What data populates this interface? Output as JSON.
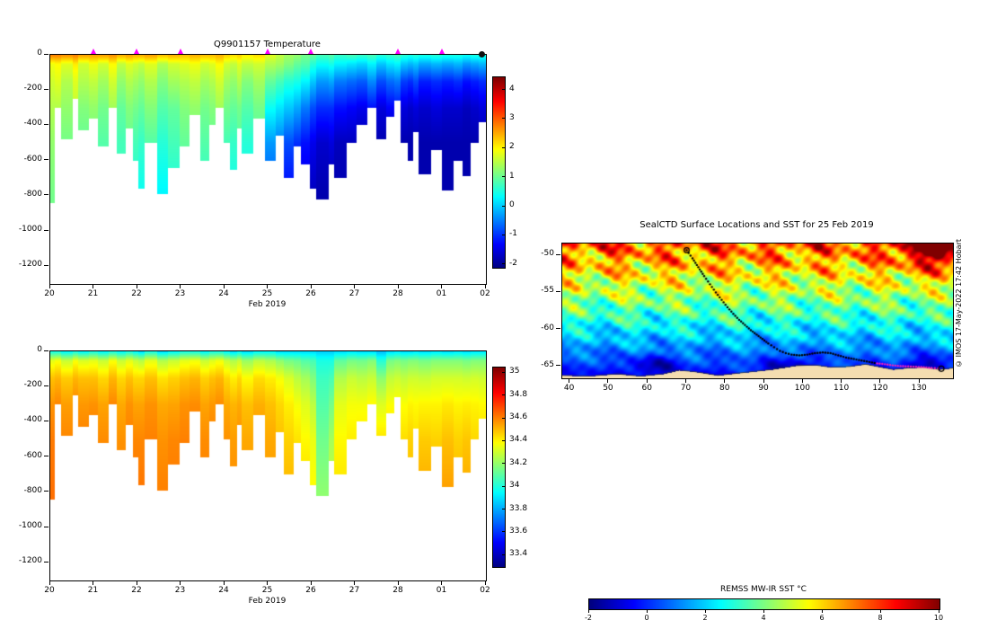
{
  "figure": {
    "background": "#ffffff"
  },
  "colors": {
    "land": "#f4ddb0",
    "track": "#000000",
    "track_recent": "#ee22bb",
    "surface_marker": "#ff00ff",
    "end_marker": "#111111",
    "axis": "#000000"
  },
  "chart_data": [
    {
      "type": "heatmap",
      "id": "temperature_section",
      "title": "Q9901157  Temperature",
      "xlabel": "Feb 2019",
      "x_ticks": [
        "20",
        "21",
        "22",
        "23",
        "24",
        "25",
        "26",
        "27",
        "28",
        "01",
        "02"
      ],
      "y_ticks": [
        0,
        -200,
        -400,
        -600,
        -800,
        -1000,
        -1200
      ],
      "ylim": [
        0,
        -1300
      ],
      "x_span_days": 10,
      "colorbar": {
        "min": -2.1,
        "max": 4.45,
        "ticks": [
          "4",
          "3",
          "2",
          "1",
          "0",
          "-1",
          "-2"
        ],
        "colormap": "jet"
      },
      "surface_marker_days": [
        1,
        2,
        3,
        5,
        6,
        8,
        9
      ],
      "end_marker_day": 9.93,
      "control_depths": [
        0,
        50,
        150,
        300,
        500,
        800
      ],
      "dive_max_depths": [
        840,
        300,
        480,
        250,
        430,
        360,
        520,
        300,
        560,
        420,
        600,
        760,
        500,
        790,
        640,
        520,
        340,
        600,
        400,
        300,
        500,
        650,
        420,
        560,
        360,
        600,
        460,
        700,
        520,
        620,
        760,
        820,
        620,
        700,
        500,
        400,
        300,
        480,
        350,
        260,
        500,
        600,
        440,
        680,
        540,
        770,
        600,
        690,
        500,
        380
      ],
      "profiles": [
        [
          2.8,
          1.9,
          1.7,
          1.5,
          1.3,
          1.1
        ],
        [
          2.8,
          2.0,
          1.8,
          1.5,
          1.4,
          1.2
        ],
        [
          2.7,
          1.8,
          1.5,
          1.3,
          1.1,
          1.0
        ],
        [
          2.8,
          2.1,
          1.8,
          1.6,
          1.4,
          1.2
        ],
        [
          2.6,
          1.7,
          1.5,
          1.2,
          1.0,
          0.9
        ],
        [
          2.6,
          1.9,
          1.6,
          1.3,
          1.1,
          1.0
        ],
        [
          2.6,
          1.7,
          1.4,
          1.1,
          0.9,
          0.8
        ],
        [
          2.7,
          2.0,
          1.7,
          1.4,
          1.2,
          1.0
        ],
        [
          2.5,
          1.6,
          1.3,
          1.0,
          0.8,
          0.7
        ],
        [
          2.6,
          1.8,
          1.5,
          1.2,
          1.0,
          0.9
        ],
        [
          2.5,
          1.7,
          1.4,
          1.1,
          0.8,
          0.5
        ],
        [
          2.5,
          1.6,
          1.3,
          1.0,
          0.7,
          0.4
        ],
        [
          2.6,
          1.8,
          1.5,
          1.2,
          0.9,
          0.7
        ],
        [
          2.4,
          1.5,
          1.2,
          0.9,
          0.6,
          0.3
        ],
        [
          2.5,
          1.7,
          1.4,
          1.0,
          0.8,
          0.5
        ],
        [
          2.4,
          1.8,
          1.5,
          1.2,
          1.0,
          0.8
        ],
        [
          2.5,
          1.9,
          1.6,
          1.3,
          1.1,
          0.9
        ],
        [
          2.4,
          1.7,
          1.4,
          1.1,
          0.9,
          0.6
        ],
        [
          2.4,
          1.8,
          1.5,
          1.2,
          1.0,
          0.8
        ],
        [
          2.5,
          2.0,
          1.7,
          1.4,
          1.2,
          1.0
        ],
        [
          2.3,
          1.7,
          1.4,
          1.1,
          0.8,
          0.6
        ],
        [
          2.2,
          1.6,
          1.3,
          1.0,
          0.7,
          0.4
        ],
        [
          2.3,
          1.8,
          1.5,
          1.1,
          0.9,
          0.7
        ],
        [
          2.1,
          1.6,
          1.2,
          0.9,
          0.6,
          0.4
        ],
        [
          2.2,
          1.7,
          1.4,
          1.1,
          0.9,
          0.7
        ],
        [
          1.8,
          1.5,
          1.0,
          0.4,
          -0.3,
          -0.8
        ],
        [
          1.6,
          1.4,
          0.8,
          0.2,
          -0.5,
          -1.0
        ],
        [
          1.4,
          1.2,
          0.6,
          0.0,
          -0.8,
          -1.3
        ],
        [
          1.3,
          1.0,
          0.5,
          -0.2,
          -1.0,
          -1.4
        ],
        [
          1.1,
          0.9,
          0.3,
          -0.5,
          -1.2,
          -1.5
        ],
        [
          1.0,
          0.6,
          0.0,
          -0.8,
          -1.4,
          -1.7
        ],
        [
          0.8,
          0.4,
          -0.3,
          -1.0,
          -1.6,
          -1.8
        ],
        [
          0.9,
          0.5,
          -0.2,
          -1.0,
          -1.5,
          -1.8
        ],
        [
          0.7,
          0.3,
          -0.5,
          -1.2,
          -1.7,
          -1.8
        ],
        [
          0.8,
          0.2,
          -0.6,
          -1.3,
          -1.7,
          -1.8
        ],
        [
          0.7,
          0.1,
          -0.7,
          -1.4,
          -1.8,
          -1.8
        ],
        [
          0.8,
          0.3,
          -0.4,
          -1.2,
          -1.7,
          -1.8
        ],
        [
          0.6,
          0.0,
          -0.8,
          -1.5,
          -1.8,
          -1.8
        ],
        [
          0.7,
          0.2,
          -0.6,
          -1.3,
          -1.8,
          -1.8
        ],
        [
          0.8,
          0.3,
          -0.5,
          -1.2,
          -1.7,
          -1.8
        ],
        [
          0.6,
          0.0,
          -0.9,
          -1.5,
          -1.8,
          -1.8
        ],
        [
          0.5,
          -0.1,
          -1.0,
          -1.6,
          -1.8,
          -1.8
        ],
        [
          0.6,
          0.0,
          -0.8,
          -1.5,
          -1.8,
          -1.8
        ],
        [
          0.5,
          -0.2,
          -1.1,
          -1.6,
          -1.8,
          -1.8
        ],
        [
          0.6,
          -0.1,
          -1.0,
          -1.5,
          -1.8,
          -1.8
        ],
        [
          0.5,
          -0.2,
          -1.1,
          -1.6,
          -1.8,
          -1.8
        ],
        [
          0.5,
          -0.1,
          -1.0,
          -1.6,
          -1.8,
          -1.8
        ],
        [
          0.4,
          -0.3,
          -1.2,
          -1.7,
          -1.8,
          -1.8
        ],
        [
          0.5,
          -0.2,
          -1.1,
          -1.6,
          -1.8,
          -1.8
        ],
        [
          0.5,
          -0.1,
          -1.0,
          -1.5,
          -1.8,
          -1.8
        ]
      ]
    },
    {
      "type": "heatmap",
      "id": "salinity_section",
      "title": "",
      "xlabel": "Feb 2019",
      "x_ticks": [
        "20",
        "21",
        "22",
        "23",
        "24",
        "25",
        "26",
        "27",
        "28",
        "01",
        "02"
      ],
      "y_ticks": [
        0,
        -200,
        -400,
        -600,
        -800,
        -1000,
        -1200
      ],
      "ylim": [
        0,
        -1300
      ],
      "x_span_days": 10,
      "colorbar": {
        "min": 33.3,
        "max": 35.05,
        "ticks": [
          "35",
          "34.8",
          "34.6",
          "34.4",
          "34.2",
          "34",
          "33.8",
          "33.6",
          "33.4"
        ],
        "colormap": "jet"
      },
      "shares_dive_depths_with": "temperature_section",
      "control_depths": [
        0,
        50,
        150,
        300,
        500,
        800
      ],
      "profiles": [
        [
          34.0,
          34.35,
          34.5,
          34.58,
          34.62,
          34.64
        ],
        [
          34.0,
          34.38,
          34.52,
          34.6,
          34.63,
          34.65
        ],
        [
          33.95,
          34.3,
          34.48,
          34.56,
          34.6,
          34.63
        ],
        [
          34.0,
          34.38,
          34.52,
          34.6,
          34.62,
          34.64
        ],
        [
          33.95,
          34.33,
          34.5,
          34.57,
          34.61,
          34.63
        ],
        [
          34.0,
          34.35,
          34.5,
          34.58,
          34.62,
          34.64
        ],
        [
          33.95,
          34.3,
          34.46,
          34.55,
          34.59,
          34.62
        ],
        [
          34.0,
          34.38,
          34.52,
          34.6,
          34.63,
          34.65
        ],
        [
          33.95,
          34.3,
          34.46,
          34.54,
          34.58,
          34.61
        ],
        [
          34.0,
          34.35,
          34.5,
          34.58,
          34.61,
          34.63
        ],
        [
          33.95,
          34.3,
          34.46,
          34.55,
          34.6,
          34.63
        ],
        [
          33.9,
          34.27,
          34.46,
          34.55,
          34.6,
          34.63
        ],
        [
          34.0,
          34.35,
          34.5,
          34.58,
          34.61,
          34.63
        ],
        [
          33.9,
          34.26,
          34.44,
          34.54,
          34.58,
          34.61
        ],
        [
          33.95,
          34.3,
          34.47,
          34.55,
          34.6,
          34.62
        ],
        [
          34.0,
          34.35,
          34.5,
          34.58,
          34.61,
          34.63
        ],
        [
          34.0,
          34.37,
          34.52,
          34.59,
          34.62,
          34.64
        ],
        [
          33.95,
          34.3,
          34.47,
          34.55,
          34.59,
          34.61
        ],
        [
          34.0,
          34.34,
          34.5,
          34.57,
          34.61,
          34.63
        ],
        [
          34.0,
          34.37,
          34.52,
          34.59,
          34.62,
          34.64
        ],
        [
          33.95,
          34.3,
          34.46,
          34.54,
          34.58,
          34.61
        ],
        [
          33.9,
          34.26,
          34.42,
          34.52,
          34.56,
          34.59
        ],
        [
          33.95,
          34.3,
          34.46,
          34.54,
          34.58,
          34.6
        ],
        [
          33.9,
          34.22,
          34.4,
          34.5,
          34.54,
          34.57
        ],
        [
          33.95,
          34.28,
          34.45,
          34.53,
          34.57,
          34.6
        ],
        [
          33.95,
          34.25,
          34.42,
          34.5,
          34.54,
          34.57
        ],
        [
          33.9,
          34.2,
          34.38,
          34.46,
          34.5,
          34.54
        ],
        [
          33.9,
          34.16,
          34.33,
          34.42,
          34.47,
          34.52
        ],
        [
          33.9,
          34.14,
          34.28,
          34.38,
          34.44,
          34.49
        ],
        [
          33.9,
          34.1,
          34.24,
          34.34,
          34.4,
          34.46
        ],
        [
          33.9,
          34.08,
          34.18,
          34.28,
          34.36,
          34.4
        ],
        [
          33.88,
          34.0,
          34.06,
          34.1,
          34.15,
          34.2
        ],
        [
          33.88,
          34.0,
          34.08,
          34.16,
          34.24,
          34.3
        ],
        [
          33.9,
          34.12,
          34.26,
          34.35,
          34.4,
          34.44
        ],
        [
          33.92,
          34.16,
          34.3,
          34.38,
          34.42,
          34.46
        ],
        [
          33.9,
          34.15,
          34.28,
          34.38,
          34.43,
          34.47
        ],
        [
          33.9,
          34.18,
          34.3,
          34.4,
          34.45,
          34.49
        ],
        [
          33.85,
          34.02,
          34.2,
          34.34,
          34.44,
          34.49
        ],
        [
          33.9,
          34.16,
          34.29,
          34.39,
          34.45,
          34.49
        ],
        [
          33.92,
          34.18,
          34.31,
          34.4,
          34.45,
          34.5
        ],
        [
          33.9,
          34.16,
          34.29,
          34.39,
          34.45,
          34.5
        ],
        [
          33.9,
          34.18,
          34.31,
          34.41,
          34.47,
          34.52
        ],
        [
          33.92,
          34.18,
          34.31,
          34.4,
          34.45,
          34.5
        ],
        [
          33.9,
          34.16,
          34.3,
          34.41,
          34.48,
          34.54
        ],
        [
          33.92,
          34.18,
          34.32,
          34.41,
          34.47,
          34.52
        ],
        [
          33.9,
          34.18,
          34.32,
          34.43,
          34.5,
          34.56
        ],
        [
          33.92,
          34.18,
          34.32,
          34.41,
          34.47,
          34.52
        ],
        [
          33.9,
          34.16,
          34.31,
          34.42,
          34.49,
          34.54
        ],
        [
          33.92,
          34.18,
          34.32,
          34.41,
          34.46,
          34.5
        ],
        [
          33.92,
          34.18,
          34.31,
          34.4,
          34.45,
          34.49
        ]
      ]
    },
    {
      "type": "map",
      "id": "sst_map",
      "title": "SealCTD Surface Locations and SST for 25 Feb 2019",
      "lon_ticks": [
        "40",
        "50",
        "60",
        "70",
        "80",
        "90",
        "100",
        "110",
        "120",
        "130"
      ],
      "lat_ticks": [
        "-50",
        "-55",
        "-60",
        "-65"
      ],
      "lon_range": [
        38,
        138.5
      ],
      "lat_range": [
        -66.6,
        -48.4
      ],
      "colorbar": {
        "min": -2,
        "max": 10,
        "ticks": [
          "-2",
          "0",
          "2",
          "4",
          "6",
          "8",
          "10"
        ],
        "label": "REMSS MW-IR SST °C",
        "colormap": "jet"
      },
      "credit": "© IMOS 17-May-2022 17:42 Hobart",
      "coast": [
        [
          38,
          -66.2
        ],
        [
          45,
          -66.3
        ],
        [
          52,
          -66.0
        ],
        [
          58,
          -66.3
        ],
        [
          64,
          -66.0
        ],
        [
          68,
          -65.5
        ],
        [
          72,
          -65.7
        ],
        [
          78,
          -66.2
        ],
        [
          85,
          -65.8
        ],
        [
          92,
          -65.4
        ],
        [
          98,
          -64.9
        ],
        [
          103,
          -64.8
        ],
        [
          107,
          -65.1
        ],
        [
          112,
          -65.0
        ],
        [
          116,
          -64.7
        ],
        [
          119,
          -65.0
        ],
        [
          123,
          -65.4
        ],
        [
          127,
          -65.2
        ],
        [
          131,
          -65.1
        ],
        [
          135,
          -65.4
        ],
        [
          138.5,
          -65.2
        ]
      ],
      "track": [
        [
          70,
          -49.3
        ],
        [
          71.5,
          -50.4
        ],
        [
          73,
          -51.6
        ],
        [
          74.5,
          -52.8
        ],
        [
          76,
          -53.9
        ],
        [
          77.5,
          -55.0
        ],
        [
          79,
          -56.0
        ],
        [
          80.5,
          -57.0
        ],
        [
          82,
          -57.9
        ],
        [
          83.5,
          -58.7
        ],
        [
          85,
          -59.4
        ],
        [
          86.5,
          -60.1
        ],
        [
          88,
          -60.7
        ],
        [
          89.5,
          -61.3
        ],
        [
          91,
          -61.9
        ],
        [
          92.5,
          -62.4
        ],
        [
          94,
          -62.9
        ],
        [
          95.5,
          -63.2
        ],
        [
          97,
          -63.4
        ],
        [
          99,
          -63.5
        ],
        [
          101,
          -63.4
        ],
        [
          103,
          -63.2
        ],
        [
          105,
          -63.1
        ],
        [
          107,
          -63.2
        ],
        [
          109,
          -63.5
        ],
        [
          111,
          -63.8
        ],
        [
          113,
          -64.0
        ],
        [
          115,
          -64.2
        ],
        [
          117,
          -64.4
        ],
        [
          119,
          -64.6
        ],
        [
          121,
          -64.7
        ],
        [
          123,
          -64.85
        ],
        [
          125,
          -64.95
        ],
        [
          127,
          -65.0
        ],
        [
          129,
          -65.05
        ],
        [
          131,
          -65.1
        ],
        [
          133,
          -65.2
        ],
        [
          135.5,
          -65.3
        ]
      ],
      "track_recent_from_lon": 118.5
    }
  ]
}
